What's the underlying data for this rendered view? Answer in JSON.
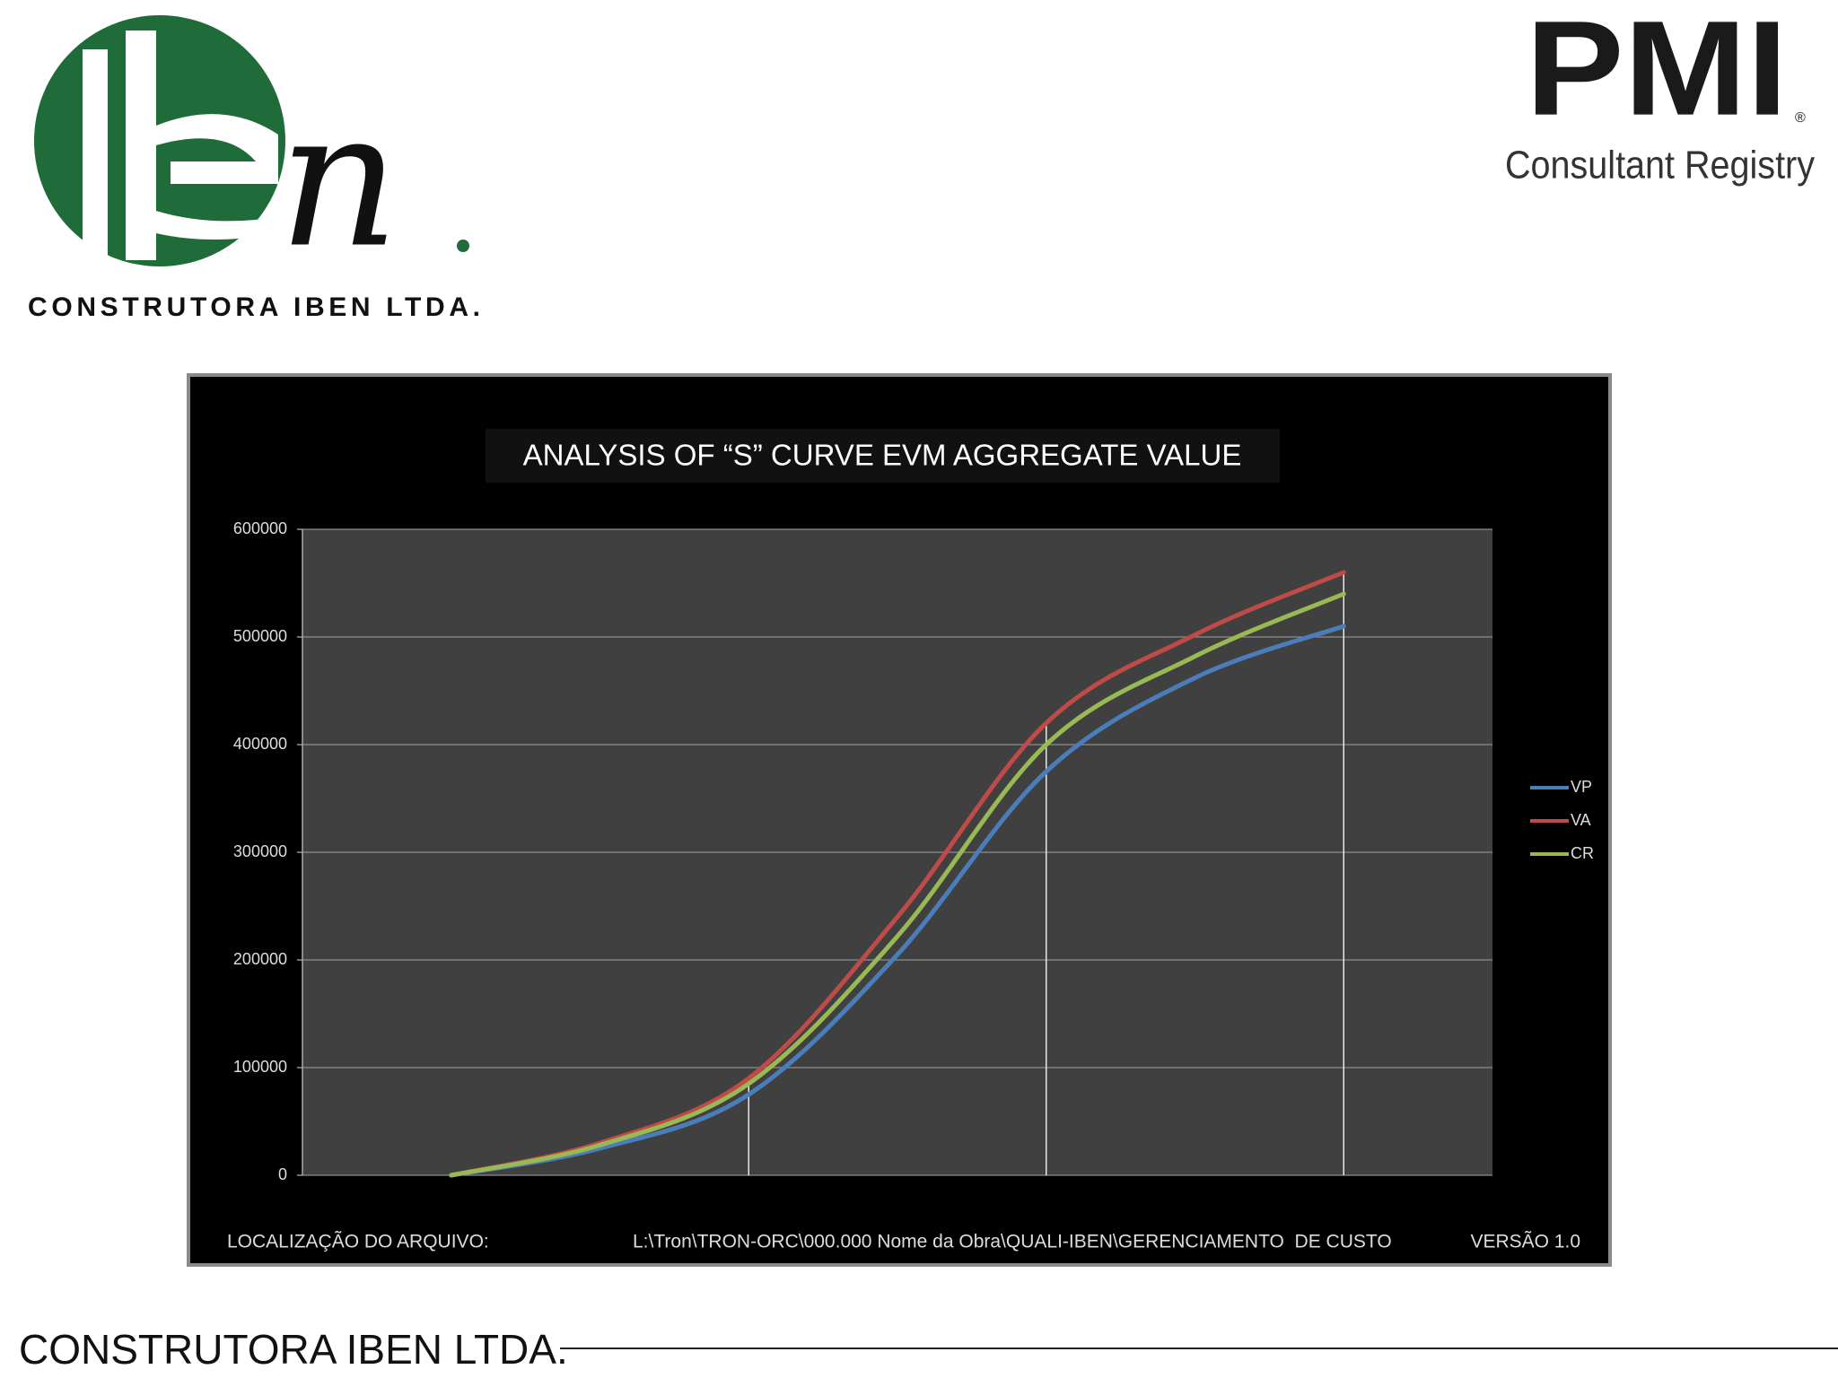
{
  "header": {
    "logo_caption": "CONSTRUTORA IBEN LTDA.",
    "pmi_logo": "PMI",
    "pmi_subtitle": "Consultant Registry"
  },
  "chart_data": {
    "type": "line",
    "title": "ANALYSIS OF “S” CURVE EVM AGGREGATE VALUE",
    "x": [
      1,
      1.5,
      2,
      2.5,
      3,
      3.5,
      4
    ],
    "xlim": [
      0.5,
      4.5
    ],
    "xticks": [
      2,
      3,
      4
    ],
    "ylim": [
      0,
      600000
    ],
    "yticks": [
      0,
      100000,
      200000,
      300000,
      400000,
      500000,
      600000
    ],
    "grid": true,
    "legend": "right",
    "series": [
      {
        "name": "VP",
        "color": "#4a7ebb",
        "values": [
          0,
          25000,
          75000,
          205000,
          375000,
          462000,
          510000
        ]
      },
      {
        "name": "VA",
        "color": "#be4b48",
        "values": [
          0,
          30000,
          90000,
          240000,
          420000,
          502000,
          560000
        ]
      },
      {
        "name": "CR",
        "color": "#98b954",
        "values": [
          0,
          28000,
          85000,
          222000,
          400000,
          482000,
          540000
        ]
      }
    ],
    "file_location_label": "LOCALIZAÇÃO DO ARQUIVO:",
    "file_path": "L:\\Tron\\TRON-ORC\\000.000 Nome da Obra\\QUALI-IBEN\\GERENCIAMENTO  DE CUSTO",
    "version": "VERSÃO 1.0"
  },
  "footer": {
    "company": "CONSTRUTORA IBEN LTDA."
  }
}
